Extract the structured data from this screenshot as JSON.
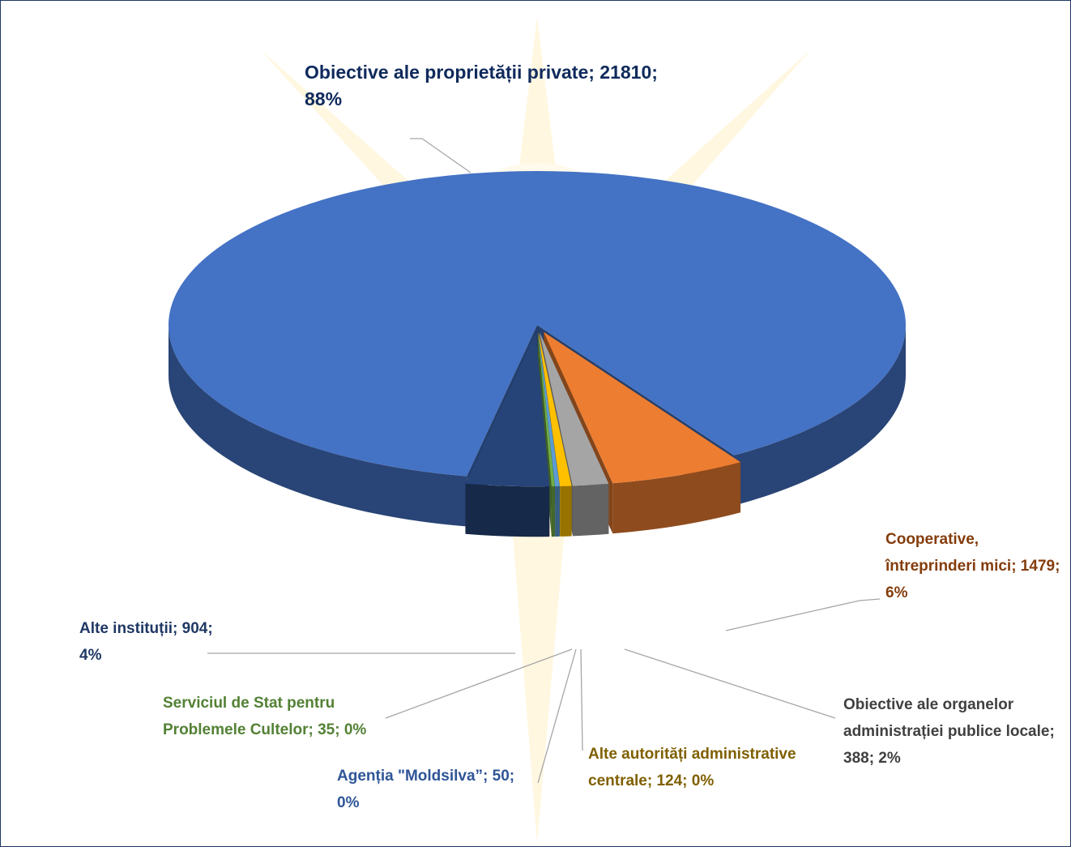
{
  "chart_data": {
    "type": "pie3d",
    "categories": [
      "Obiective ale proprietății private",
      "Cooperative, întreprinderi mici",
      "Obiective ale organelor administrației publice locale",
      "Alte autorități administrative centrale",
      "Agenția \"Moldsilva”",
      "Serviciul de Stat pentru Problemele Cultelor",
      "Alte instituții"
    ],
    "values": [
      21810,
      1479,
      388,
      124,
      50,
      35,
      904
    ],
    "value_labels": [
      "Obiective ale proprietății private; 21810; 88%",
      "Cooperative, întreprinderi mici; 1479; 6%",
      "Obiective ale organelor administrației publice locale; 388; 2%",
      "Alte autorități administrative centrale; 124; 0%",
      "Agenția \"Moldsilva”; 50; 0%",
      "Serviciul de Stat pentru Problemele Cultelor; 35; 0%",
      "Alte instituții; 904; 4%"
    ],
    "colors": [
      "#4472c4",
      "#ed7d31",
      "#a5a5a5",
      "#ffc000",
      "#5b9bd5",
      "#70ad47",
      "#264478"
    ],
    "label_colors": [
      "#0f2a5c",
      "#843c0c",
      "#404040",
      "#7f6000",
      "#2f5597",
      "#538135",
      "#1f3864"
    ]
  }
}
